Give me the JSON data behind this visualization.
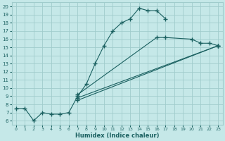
{
  "xlabel": "Humidex (Indice chaleur)",
  "xlim": [
    -0.5,
    23.5
  ],
  "ylim": [
    5.5,
    20.5
  ],
  "xticks": [
    0,
    1,
    2,
    3,
    4,
    5,
    6,
    7,
    8,
    9,
    10,
    11,
    12,
    13,
    14,
    15,
    16,
    17,
    18,
    19,
    20,
    21,
    22,
    23
  ],
  "yticks": [
    6,
    7,
    8,
    9,
    10,
    11,
    12,
    13,
    14,
    15,
    16,
    17,
    18,
    19,
    20
  ],
  "bg_color": "#c5e8e8",
  "grid_color": "#a0cccc",
  "line_color": "#1a6060",
  "series": [
    {
      "x": [
        0,
        1,
        2,
        3,
        4,
        5,
        6,
        7,
        8,
        9,
        10,
        11,
        12,
        13,
        14,
        15,
        16,
        17
      ],
      "y": [
        7.5,
        7.5,
        6.0,
        7.0,
        6.8,
        6.8,
        7.0,
        9.0,
        10.5,
        13.0,
        15.2,
        17.0,
        18.0,
        18.5,
        19.8,
        19.5,
        19.5,
        18.5
      ]
    },
    {
      "x": [
        7,
        23
      ],
      "y": [
        8.5,
        15.2
      ]
    },
    {
      "x": [
        7,
        23
      ],
      "y": [
        8.8,
        15.2
      ]
    },
    {
      "x": [
        7,
        16,
        17,
        20,
        21,
        22,
        23
      ],
      "y": [
        9.2,
        16.2,
        16.2,
        16.0,
        15.5,
        15.5,
        15.2
      ]
    }
  ]
}
